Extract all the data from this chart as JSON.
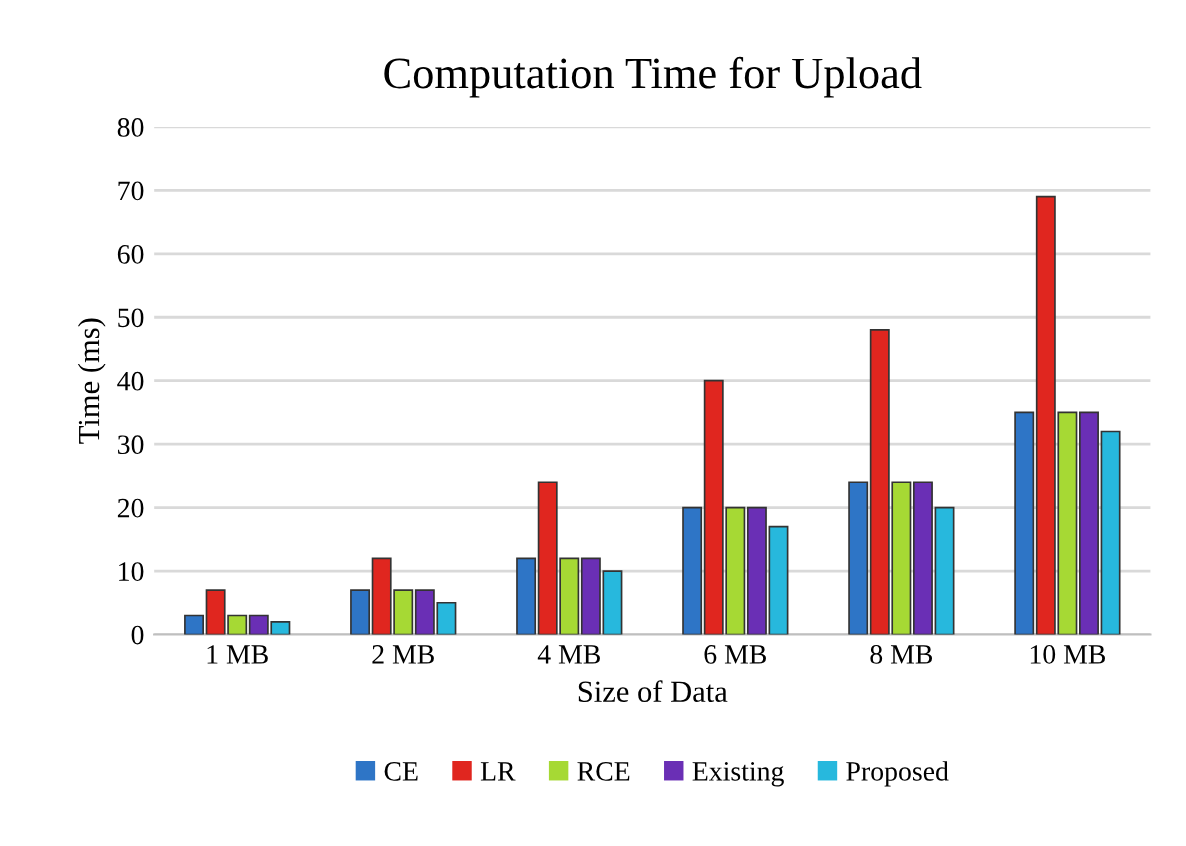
{
  "chart_data": {
    "type": "bar",
    "title": "Computation Time for Upload",
    "xlabel": "Size of Data",
    "ylabel": "Time (ms)",
    "categories": [
      "1 MB",
      "2 MB",
      "4 MB",
      "6 MB",
      "8 MB",
      "10 MB"
    ],
    "series": [
      {
        "name": "CE",
        "color": "#2e75c6",
        "values": [
          3,
          7,
          12,
          20,
          24,
          35
        ]
      },
      {
        "name": "LR",
        "color": "#e0261f",
        "values": [
          7,
          12,
          24,
          40,
          48,
          69
        ]
      },
      {
        "name": "RCE",
        "color": "#a6d934",
        "values": [
          3,
          7,
          12,
          20,
          24,
          35
        ]
      },
      {
        "name": "Existing",
        "color": "#6a2fb5",
        "values": [
          3,
          7,
          12,
          20,
          24,
          35
        ]
      },
      {
        "name": "Proposed",
        "color": "#27b8dd",
        "values": [
          2,
          5,
          10,
          17,
          20,
          32
        ]
      }
    ],
    "ylim": [
      0,
      80
    ],
    "yticks": [
      0,
      10,
      20,
      30,
      40,
      50,
      60,
      70,
      80
    ],
    "grid": "y",
    "legend": "bottom"
  }
}
